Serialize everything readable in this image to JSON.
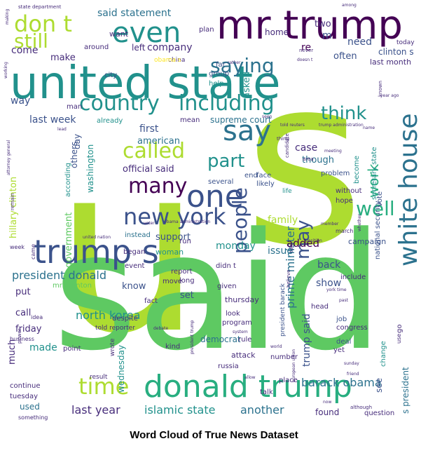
{
  "caption": "Word Cloud of True News Dataset",
  "palette": [
    "#440154",
    "#472d7b",
    "#3b528b",
    "#2c728e",
    "#21918c",
    "#28ae80",
    "#5ec962",
    "#addc30",
    "#fde725"
  ],
  "words": [
    {
      "text": "u",
      "w": 100,
      "c": "#addc30"
    },
    {
      "text": "s",
      "w": 90,
      "c": "#addc30"
    },
    {
      "text": "said",
      "w": 88,
      "c": "#5ec962"
    },
    {
      "text": "united state",
      "w": 60,
      "c": "#21918c"
    },
    {
      "text": "mr trump",
      "w": 48,
      "c": "#440154"
    },
    {
      "text": "donald trump",
      "w": 40,
      "c": "#28ae80"
    },
    {
      "text": "trump s",
      "w": 38,
      "c": "#3b528b"
    },
    {
      "text": "one",
      "w": 36,
      "c": "#3b528b"
    },
    {
      "text": "white house",
      "w": 36,
      "c": "#2c728e"
    },
    {
      "text": "say",
      "w": 32,
      "c": "#2c728e"
    },
    {
      "text": "new york",
      "w": 30,
      "c": "#3b528b"
    },
    {
      "text": "even",
      "w": 30,
      "c": "#21918c"
    },
    {
      "text": "don t",
      "w": 28,
      "c": "#addc30"
    },
    {
      "text": "country",
      "w": 28,
      "c": "#21918c"
    },
    {
      "text": "including",
      "w": 28,
      "c": "#21918c"
    },
    {
      "text": "still",
      "w": 26,
      "c": "#addc30"
    },
    {
      "text": "time",
      "w": 28,
      "c": "#addc30"
    },
    {
      "text": "many",
      "w": 26,
      "c": "#440154"
    },
    {
      "text": "saying",
      "w": 24,
      "c": "#2c728e"
    },
    {
      "text": "called",
      "w": 24,
      "c": "#addc30"
    },
    {
      "text": "people",
      "w": 24,
      "c": "#3b528b"
    },
    {
      "text": "think",
      "w": 22,
      "c": "#21918c"
    },
    {
      "text": "part",
      "w": 22,
      "c": "#21918c"
    },
    {
      "text": "well",
      "w": 22,
      "c": "#28ae80"
    },
    {
      "text": "may",
      "w": 20,
      "c": "#3b528b"
    },
    {
      "text": "work",
      "w": 18,
      "c": "#28ae80"
    },
    {
      "text": "prime minister",
      "w": 14,
      "c": "#2c728e"
    },
    {
      "text": "president donald",
      "w": 14,
      "c": "#2c728e"
    },
    {
      "text": "north korea",
      "w": 14,
      "c": "#21918c"
    },
    {
      "text": "islamic state",
      "w": 14,
      "c": "#21918c"
    },
    {
      "text": "barack obama",
      "w": 14,
      "c": "#2c728e"
    },
    {
      "text": "last year",
      "w": 14,
      "c": "#472d7b"
    },
    {
      "text": "another",
      "w": 14,
      "c": "#2c728e"
    },
    {
      "text": "said statement",
      "w": 12,
      "c": "#2c728e"
    },
    {
      "text": "company",
      "w": 12,
      "c": "#472d7b"
    },
    {
      "text": "supreme court",
      "w": 11,
      "c": "#2c728e"
    },
    {
      "text": "official said",
      "w": 12,
      "c": "#472d7b"
    },
    {
      "text": "hillary clinton",
      "w": 12,
      "c": "#addc30"
    },
    {
      "text": "government",
      "w": 12,
      "c": "#5ec962"
    },
    {
      "text": "monday",
      "w": 12,
      "c": "#21918c"
    },
    {
      "text": "trump said",
      "w": 12,
      "c": "#3b528b"
    },
    {
      "text": "family",
      "w": 12,
      "c": "#addc30"
    },
    {
      "text": "issue",
      "w": 12,
      "c": "#2c728e"
    },
    {
      "text": "added",
      "w": 12,
      "c": "#440154"
    },
    {
      "text": "back",
      "w": 12,
      "c": "#3b528b"
    },
    {
      "text": "show",
      "w": 12,
      "c": "#3b528b"
    },
    {
      "text": "case",
      "w": 12,
      "c": "#472d7b"
    },
    {
      "text": "though",
      "w": 11,
      "c": "#2c728e"
    },
    {
      "text": "first",
      "w": 12,
      "c": "#3b528b"
    },
    {
      "text": "american",
      "w": 11,
      "c": "#2c728e"
    },
    {
      "text": "last week",
      "w": 12,
      "c": "#3b528b"
    },
    {
      "text": "way",
      "w": 12,
      "c": "#3b528b"
    },
    {
      "text": "come",
      "w": 11,
      "c": "#472d7b"
    },
    {
      "text": "make",
      "w": 10,
      "c": "#472d7b"
    },
    {
      "text": "need",
      "w": 12,
      "c": "#3b528b"
    },
    {
      "text": "often",
      "w": 11,
      "c": "#3b528b"
    },
    {
      "text": "re",
      "w": 11,
      "c": "#440154"
    },
    {
      "text": "two",
      "w": 11,
      "c": "#472d7b"
    },
    {
      "text": "home",
      "w": 10,
      "c": "#472d7b"
    },
    {
      "text": "m",
      "w": 12,
      "c": "#3b528b"
    },
    {
      "text": "left",
      "w": 10,
      "c": "#472d7b"
    },
    {
      "text": "want",
      "w": 9,
      "c": "#472d7b"
    },
    {
      "text": "plan",
      "w": 9,
      "c": "#472d7b"
    },
    {
      "text": "asked",
      "w": 11,
      "c": "#21918c"
    },
    {
      "text": "clinton s",
      "w": 10,
      "c": "#3b528b"
    },
    {
      "text": "last month",
      "w": 10,
      "c": "#472d7b"
    },
    {
      "text": "today",
      "w": 9,
      "c": "#472d7b"
    },
    {
      "text": "around",
      "w": 9,
      "c": "#472d7b"
    },
    {
      "text": "group",
      "w": 9,
      "c": "#3b528b"
    },
    {
      "text": "help",
      "w": 9,
      "c": "#21918c"
    },
    {
      "text": "far",
      "w": 9,
      "c": "#3b528b"
    },
    {
      "text": "city",
      "w": 9,
      "c": "#3b528b"
    },
    {
      "text": "man",
      "w": 9,
      "c": "#472d7b"
    },
    {
      "text": "already",
      "w": 9,
      "c": "#21918c"
    },
    {
      "text": "mean",
      "w": 9,
      "c": "#472d7b"
    },
    {
      "text": "others",
      "w": 10,
      "c": "#3b528b"
    },
    {
      "text": "day",
      "w": 10,
      "c": "#3b528b"
    },
    {
      "text": "washington",
      "w": 10,
      "c": "#21918c"
    },
    {
      "text": "according",
      "w": 9,
      "c": "#21918c"
    },
    {
      "text": "end",
      "w": 9,
      "c": "#3b528b"
    },
    {
      "text": "face",
      "w": 9,
      "c": "#3b528b"
    },
    {
      "text": "likely",
      "w": 9,
      "c": "#3b528b"
    },
    {
      "text": "several",
      "w": 9,
      "c": "#3b528b"
    },
    {
      "text": "problem",
      "w": 9,
      "c": "#3b528b"
    },
    {
      "text": "become",
      "w": 9,
      "c": "#21918c"
    },
    {
      "text": "secretary state",
      "w": 9,
      "c": "#21918c"
    },
    {
      "text": "life",
      "w": 8,
      "c": "#21918c"
    },
    {
      "text": "vote",
      "w": 9,
      "c": "#3b528b"
    },
    {
      "text": "without",
      "w": 9,
      "c": "#472d7b"
    },
    {
      "text": "hope",
      "w": 9,
      "c": "#472d7b"
    },
    {
      "text": "support",
      "w": 11,
      "c": "#3b528b"
    },
    {
      "text": "instead",
      "w": 9,
      "c": "#2c728e"
    },
    {
      "text": "began",
      "w": 9,
      "c": "#472d7b"
    },
    {
      "text": "woman",
      "w": 10,
      "c": "#21918c"
    },
    {
      "text": "event",
      "w": 9,
      "c": "#472d7b"
    },
    {
      "text": "run",
      "w": 9,
      "c": "#472d7b"
    },
    {
      "text": "might",
      "w": 9,
      "c": "#5ec962"
    },
    {
      "text": "report",
      "w": 9,
      "c": "#472d7b"
    },
    {
      "text": "long",
      "w": 9,
      "c": "#472d7b"
    },
    {
      "text": "move",
      "w": 9,
      "c": "#472d7b"
    },
    {
      "text": "didn t",
      "w": 9,
      "c": "#472d7b"
    },
    {
      "text": "given",
      "w": 9,
      "c": "#472d7b"
    },
    {
      "text": "campaign",
      "w": 10,
      "c": "#3b528b"
    },
    {
      "text": "include",
      "w": 9,
      "c": "#472d7b"
    },
    {
      "text": "national security",
      "w": 9,
      "c": "#3b528b"
    },
    {
      "text": "march",
      "w": 8,
      "c": "#472d7b"
    },
    {
      "text": "put",
      "w": 11,
      "c": "#472d7b"
    },
    {
      "text": "mrs clinton",
      "w": 9,
      "c": "#5ec962"
    },
    {
      "text": "know",
      "w": 11,
      "c": "#3b528b"
    },
    {
      "text": "set",
      "w": 11,
      "c": "#3b528b"
    },
    {
      "text": "fact",
      "w": 9,
      "c": "#472d7b"
    },
    {
      "text": "thursday",
      "w": 10,
      "c": "#472d7b"
    },
    {
      "text": "call",
      "w": 11,
      "c": "#472d7b"
    },
    {
      "text": "despite",
      "w": 9,
      "c": "#472d7b"
    },
    {
      "text": "told reporter",
      "w": 8,
      "c": "#472d7b"
    },
    {
      "text": "look",
      "w": 9,
      "c": "#472d7b"
    },
    {
      "text": "program",
      "w": 9,
      "c": "#472d7b"
    },
    {
      "text": "friday",
      "w": 11,
      "c": "#472d7b"
    },
    {
      "text": "head",
      "w": 9,
      "c": "#472d7b"
    },
    {
      "text": "president barack",
      "w": 9,
      "c": "#3b528b"
    },
    {
      "text": "job",
      "w": 9,
      "c": "#3b528b"
    },
    {
      "text": "congress",
      "w": 9,
      "c": "#472d7b"
    },
    {
      "text": "deal",
      "w": 9,
      "c": "#3b528b"
    },
    {
      "text": "yet",
      "w": 9,
      "c": "#472d7b"
    },
    {
      "text": "made",
      "w": 12,
      "c": "#21918c"
    },
    {
      "text": "much",
      "w": 11,
      "c": "#472d7b"
    },
    {
      "text": "point",
      "w": 9,
      "c": "#472d7b"
    },
    {
      "text": "wrote",
      "w": 8,
      "c": "#472d7b"
    },
    {
      "text": "kind",
      "w": 9,
      "c": "#472d7b"
    },
    {
      "text": "democrat",
      "w": 10,
      "c": "#2c728e"
    },
    {
      "text": "rule",
      "w": 9,
      "c": "#472d7b"
    },
    {
      "text": "attack",
      "w": 10,
      "c": "#472d7b"
    },
    {
      "text": "russia",
      "w": 9,
      "c": "#472d7b"
    },
    {
      "text": "number",
      "w": 9,
      "c": "#472d7b"
    },
    {
      "text": "change",
      "w": 9,
      "c": "#21918c"
    },
    {
      "text": "use",
      "w": 8,
      "c": "#472d7b"
    },
    {
      "text": "go",
      "w": 9,
      "c": "#472d7b"
    },
    {
      "text": "wednesday",
      "w": 10,
      "c": "#21918c"
    },
    {
      "text": "result",
      "w": 8,
      "c": "#472d7b"
    },
    {
      "text": "place",
      "w": 9,
      "c": "#472d7b"
    },
    {
      "text": "talk",
      "w": 9,
      "c": "#472d7b"
    },
    {
      "text": "see",
      "w": 11,
      "c": "#3b528b"
    },
    {
      "text": "s president",
      "w": 11,
      "c": "#2c728e"
    },
    {
      "text": "continue",
      "w": 9,
      "c": "#472d7b"
    },
    {
      "text": "tuesday",
      "w": 9,
      "c": "#472d7b"
    },
    {
      "text": "used",
      "w": 10,
      "c": "#2c728e"
    },
    {
      "text": "found",
      "w": 10,
      "c": "#472d7b"
    },
    {
      "text": "question",
      "w": 9,
      "c": "#472d7b"
    },
    {
      "text": "something",
      "w": 8,
      "c": "#472d7b"
    },
    {
      "text": "although",
      "w": 7,
      "c": "#472d7b"
    },
    {
      "text": "state department",
      "w": 7,
      "c": "#472d7b"
    },
    {
      "text": "china",
      "w": 8,
      "c": "#472d7b"
    },
    {
      "text": "obama s",
      "w": 8,
      "c": "#fde725"
    },
    {
      "text": "business",
      "w": 8,
      "c": "#472d7b"
    },
    {
      "text": "idea",
      "w": 8,
      "c": "#472d7b"
    },
    {
      "text": "week",
      "w": 8,
      "c": "#472d7b"
    },
    {
      "text": "came",
      "w": 8,
      "c": "#472d7b"
    },
    {
      "text": "power",
      "w": 7,
      "c": "#472d7b"
    },
    {
      "text": "never",
      "w": 7,
      "c": "#472d7b"
    },
    {
      "text": "among",
      "w": 6,
      "c": "#472d7b"
    },
    {
      "text": "making",
      "w": 6,
      "c": "#472d7b"
    },
    {
      "text": "doesn t",
      "w": 6,
      "c": "#472d7b"
    },
    {
      "text": "rather",
      "w": 6,
      "c": "#472d7b"
    },
    {
      "text": "working",
      "w": 6,
      "c": "#472d7b"
    },
    {
      "text": "known",
      "w": 7,
      "c": "#472d7b"
    },
    {
      "text": "year ago",
      "w": 6,
      "c": "#472d7b"
    },
    {
      "text": "seen",
      "w": 6,
      "c": "#472d7b"
    },
    {
      "text": "told reuters",
      "w": 6,
      "c": "#472d7b"
    },
    {
      "text": "trump administration",
      "w": 6,
      "c": "#472d7b"
    },
    {
      "text": "name",
      "w": 6,
      "c": "#472d7b"
    },
    {
      "text": "thing",
      "w": 7,
      "c": "#472d7b"
    },
    {
      "text": "candidate",
      "w": 7,
      "c": "#472d7b"
    },
    {
      "text": "meeting",
      "w": 6,
      "c": "#472d7b"
    },
    {
      "text": "area",
      "w": 7,
      "c": "#472d7b"
    },
    {
      "text": "lead",
      "w": 6,
      "c": "#472d7b"
    },
    {
      "text": "attorney general",
      "w": 6,
      "c": "#472d7b"
    },
    {
      "text": "voter",
      "w": 6,
      "c": "#472d7b"
    },
    {
      "text": "member",
      "w": 6,
      "c": "#472d7b"
    },
    {
      "text": "obama administration",
      "w": 6,
      "c": "#472d7b"
    },
    {
      "text": "whether",
      "w": 6,
      "c": "#472d7b"
    },
    {
      "text": "remain",
      "w": 7,
      "c": "#472d7b"
    },
    {
      "text": "united nation",
      "w": 6,
      "c": "#472d7b"
    },
    {
      "text": "position",
      "w": 6,
      "c": "#472d7b"
    },
    {
      "text": "believe",
      "w": 7,
      "c": "#472d7b"
    },
    {
      "text": "york time",
      "w": 6,
      "c": "#472d7b"
    },
    {
      "text": "past",
      "w": 6,
      "c": "#472d7b"
    },
    {
      "text": "debate",
      "w": 6,
      "c": "#472d7b"
    },
    {
      "text": "system",
      "w": 6,
      "c": "#472d7b"
    },
    {
      "text": "president trump",
      "w": 6,
      "c": "#472d7b"
    },
    {
      "text": "world",
      "w": 6,
      "c": "#472d7b"
    },
    {
      "text": "european union",
      "w": 6,
      "c": "#472d7b"
    },
    {
      "text": "sunday",
      "w": 6,
      "c": "#472d7b"
    },
    {
      "text": "friend",
      "w": 6,
      "c": "#472d7b"
    },
    {
      "text": "allow",
      "w": 6,
      "c": "#472d7b"
    },
    {
      "text": "now",
      "w": 6,
      "c": "#472d7b"
    },
    {
      "text": "take",
      "w": 6,
      "c": "#472d7b"
    }
  ]
}
